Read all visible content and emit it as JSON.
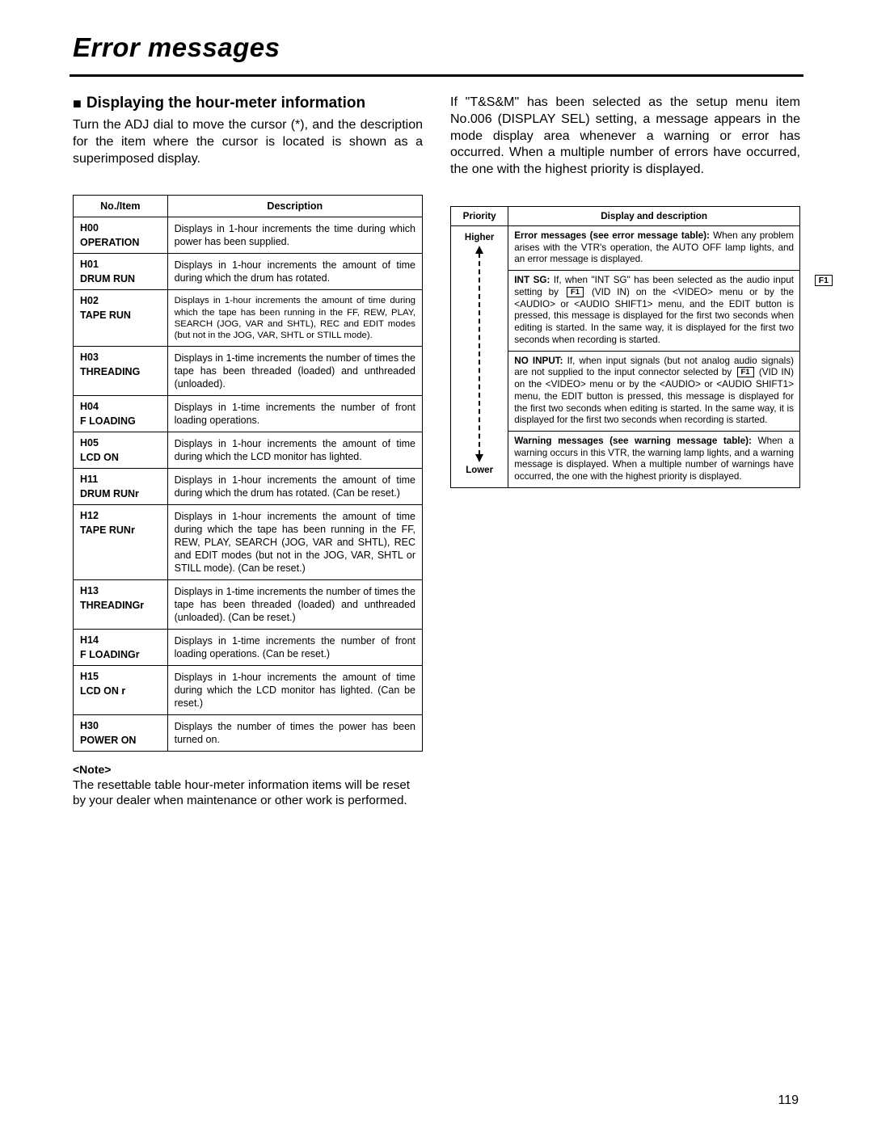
{
  "title": "Error messages",
  "left": {
    "heading": "Displaying the hour-meter information",
    "bullet": "■",
    "intro": "Turn the ADJ dial to move the cursor (*), and the description for the item where the cursor is located is shown as a superimposed display.",
    "table": {
      "head": {
        "c1": "No./Item",
        "c2": "Description"
      },
      "rows": [
        {
          "code": "H00",
          "name": "OPERATION",
          "desc": "Displays in 1-hour increments the time during which power has been supplied."
        },
        {
          "code": "H01",
          "name": "DRUM RUN",
          "desc": "Displays in 1-hour increments the amount of time during which the drum has rotated."
        },
        {
          "code": "H02",
          "name": "TAPE RUN",
          "desc": "Displays in 1-hour increments the amount of time during which the tape has been running in the FF, REW, PLAY, SEARCH (JOG, VAR and SHTL), REC and EDIT modes (but not in the JOG, VAR, SHTL or STILL mode).",
          "small": true
        },
        {
          "code": "H03",
          "name": "THREADING",
          "desc": "Displays in 1-time increments the number of times the tape has been threaded (loaded) and unthreaded (unloaded)."
        },
        {
          "code": "H04",
          "name": "F LOADING",
          "desc": "Displays in 1-time increments the number of front loading operations."
        },
        {
          "code": "H05",
          "name": "LCD ON",
          "desc": "Displays in 1-hour increments the amount of time during which the LCD monitor has lighted."
        },
        {
          "code": "H11",
          "name": "DRUM RUNr",
          "desc": "Displays in 1-hour increments the amount of time during which the drum has rotated.\n(Can be reset.)"
        },
        {
          "code": "H12",
          "name": "TAPE RUNr",
          "desc": "Displays in 1-hour increments the amount of time during which the tape has been running in the FF, REW, PLAY, SEARCH (JOG, VAR and SHTL), REC and EDIT modes (but not in the JOG, VAR, SHTL or STILL mode).  (Can be reset.)"
        },
        {
          "code": "H13",
          "name": "THREADINGr",
          "desc": "Displays in 1-time increments the number of times the tape has been threaded (loaded) and unthreaded (unloaded).  (Can be reset.)"
        },
        {
          "code": "H14",
          "name": "F LOADINGr",
          "desc": "Displays in 1-time increments the number of front loading operations.\n(Can be reset.)"
        },
        {
          "code": "H15",
          "name": "LCD ON r",
          "desc": "Displays in 1-hour increments the amount of time during which the LCD monitor has lighted.\n(Can be reset.)"
        },
        {
          "code": "H30",
          "name": "POWER ON",
          "desc": "Displays the number of times the power has been turned on."
        }
      ]
    },
    "note_label": "<Note>",
    "note_text": "The resettable table hour-meter information items will be reset by your dealer when maintenance or other work is performed."
  },
  "right": {
    "intro": "If \"T&S&M\" has been selected as the setup menu item No.006 (DISPLAY SEL) setting, a message appears in the mode display area whenever a warning or error has occurred.  When a multiple number of errors have occurred, the one with the highest priority is displayed.",
    "table": {
      "head": {
        "c1": "Priority",
        "c2": "Display and description"
      },
      "plabels": {
        "high": "Higher",
        "low": "Lower"
      },
      "rows": [
        {
          "lead": "Error messages (see error message table):",
          "body": "When any problem arises with the VTR's operation, the AUTO OFF lamp lights, and an error message is displayed."
        },
        {
          "lead": "INT SG:",
          "segments": [
            "If, when \"INT SG\" has been selected as the audio input setting by ",
            {
              "f1": "F1"
            },
            " (VID IN) on the <VIDEO> menu or by the <AUDIO> or <AUDIO SHIFT1> menu, and the EDIT button is pressed, this message is displayed for the first two seconds when editing is started.  In the same way, it is displayed for the first two seconds when recording is started."
          ]
        },
        {
          "lead": "NO INPUT:",
          "segments": [
            "If, when input signals (but not analog audio signals) are not supplied to the input connector selected by ",
            {
              "f1": "F1"
            },
            " (VID IN) on the <VIDEO> menu or by the <AUDIO> or <AUDIO SHIFT1> menu, the EDIT button is pressed, this message is displayed for the first two seconds when editing is started.  In the same way, it is displayed for the first two seconds when recording is started."
          ]
        },
        {
          "lead": "Warning messages (see warning message table):",
          "body": "When a warning occurs in this VTR, the warning lamp lights, and a warning message is displayed.  When a multiple number of warnings have occurred, the one with the highest priority is displayed."
        }
      ]
    }
  },
  "side_f1": "F1",
  "page_number": "119"
}
